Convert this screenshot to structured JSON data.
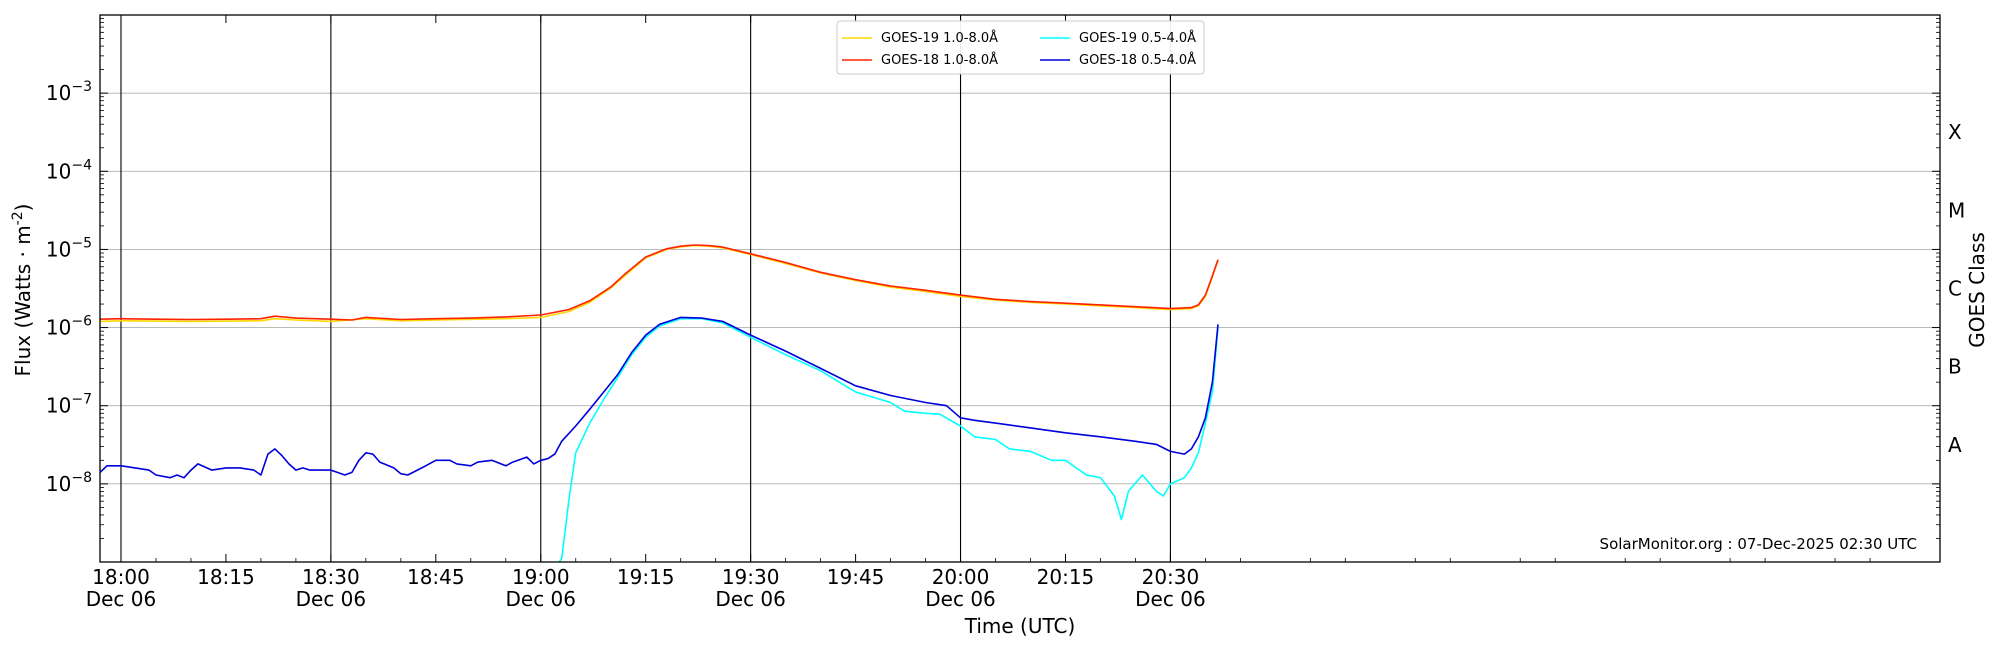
{
  "chart_data": {
    "type": "line",
    "title": "",
    "xlabel": "Time (UTC)",
    "ylabel": "Flux (Watts · m",
    "ylabel_sup": "-2",
    "ylabel_tail": ")",
    "right_label": "GOES Class",
    "y_scale": "log",
    "ylim": [
      1e-09,
      0.01
    ],
    "xlim_minutes": [
      -3,
      260
    ],
    "x_ticks": [
      {
        "minute": 0,
        "time": "18:00",
        "date": "Dec 06"
      },
      {
        "minute": 15,
        "time": "18:15",
        "date": ""
      },
      {
        "minute": 30,
        "time": "18:30",
        "date": "Dec 06"
      },
      {
        "minute": 45,
        "time": "18:45",
        "date": ""
      },
      {
        "minute": 60,
        "time": "19:00",
        "date": "Dec 06"
      },
      {
        "minute": 75,
        "time": "19:15",
        "date": ""
      },
      {
        "minute": 90,
        "time": "19:30",
        "date": "Dec 06"
      },
      {
        "minute": 105,
        "time": "19:45",
        "date": ""
      },
      {
        "minute": 120,
        "time": "20:00",
        "date": "Dec 06"
      },
      {
        "minute": 135,
        "time": "20:15",
        "date": ""
      },
      {
        "minute": 150,
        "time": "20:30",
        "date": "Dec 06"
      }
    ],
    "y_ticks": [
      {
        "exp": -8,
        "label_base": "10",
        "label_exp": "−8"
      },
      {
        "exp": -7,
        "label_base": "10",
        "label_exp": "−7"
      },
      {
        "exp": -6,
        "label_base": "10",
        "label_exp": "−6"
      },
      {
        "exp": -5,
        "label_base": "10",
        "label_exp": "−5"
      },
      {
        "exp": -4,
        "label_base": "10",
        "label_exp": "−4"
      },
      {
        "exp": -3,
        "label_base": "10",
        "label_exp": "−3"
      }
    ],
    "classes": [
      {
        "label": "A",
        "exp": -7.5
      },
      {
        "label": "B",
        "exp": -6.5
      },
      {
        "label": "C",
        "exp": -5.5
      },
      {
        "label": "M",
        "exp": -4.5
      },
      {
        "label": "X",
        "exp": -3.5
      }
    ],
    "grid": true,
    "legend_position": "top-center",
    "series": [
      {
        "name": "GOES-19 1.0-8.0Å",
        "color": "#ffd700",
        "points": [
          [
            -3,
            1.2e-06
          ],
          [
            0,
            1.22e-06
          ],
          [
            10,
            1.2e-06
          ],
          [
            20,
            1.22e-06
          ],
          [
            22,
            1.3e-06
          ],
          [
            25,
            1.25e-06
          ],
          [
            30,
            1.2e-06
          ],
          [
            35,
            1.3e-06
          ],
          [
            40,
            1.22e-06
          ],
          [
            45,
            1.25e-06
          ],
          [
            55,
            1.3e-06
          ],
          [
            60,
            1.35e-06
          ],
          [
            64,
            1.6e-06
          ],
          [
            67,
            2.1e-06
          ],
          [
            70,
            3.2e-06
          ],
          [
            72,
            4.6e-06
          ],
          [
            75,
            7.8e-06
          ],
          [
            78,
            1e-05
          ],
          [
            80,
            1.08e-05
          ],
          [
            82,
            1.12e-05
          ],
          [
            84,
            1.1e-05
          ],
          [
            86,
            1.05e-05
          ],
          [
            90,
            8.6e-06
          ],
          [
            95,
            6.6e-06
          ],
          [
            100,
            5e-06
          ],
          [
            105,
            4e-06
          ],
          [
            110,
            3.3e-06
          ],
          [
            115,
            2.9e-06
          ],
          [
            120,
            2.5e-06
          ],
          [
            125,
            2.25e-06
          ],
          [
            130,
            2.1e-06
          ],
          [
            135,
            2e-06
          ],
          [
            140,
            1.9e-06
          ],
          [
            145,
            1.8e-06
          ],
          [
            150,
            1.7e-06
          ],
          [
            153,
            1.75e-06
          ],
          [
            154,
            1.9e-06
          ],
          [
            155,
            2.5e-06
          ],
          [
            156,
            4.5e-06
          ],
          [
            156.8,
            7.2e-06
          ]
        ]
      },
      {
        "name": "GOES-18 1.0-8.0Å",
        "color": "#ff2200",
        "points": [
          [
            -3,
            1.28e-06
          ],
          [
            0,
            1.3e-06
          ],
          [
            5,
            1.28e-06
          ],
          [
            10,
            1.27e-06
          ],
          [
            15,
            1.28e-06
          ],
          [
            20,
            1.3e-06
          ],
          [
            22,
            1.4e-06
          ],
          [
            25,
            1.32e-06
          ],
          [
            30,
            1.28e-06
          ],
          [
            33,
            1.25e-06
          ],
          [
            35,
            1.35e-06
          ],
          [
            40,
            1.27e-06
          ],
          [
            45,
            1.3e-06
          ],
          [
            50,
            1.32e-06
          ],
          [
            55,
            1.37e-06
          ],
          [
            60,
            1.45e-06
          ],
          [
            64,
            1.7e-06
          ],
          [
            67,
            2.2e-06
          ],
          [
            70,
            3.3e-06
          ],
          [
            72,
            4.8e-06
          ],
          [
            75,
            8e-06
          ],
          [
            78,
            1.02e-05
          ],
          [
            80,
            1.1e-05
          ],
          [
            82,
            1.14e-05
          ],
          [
            84,
            1.12e-05
          ],
          [
            86,
            1.07e-05
          ],
          [
            90,
            8.8e-06
          ],
          [
            95,
            6.8e-06
          ],
          [
            100,
            5.1e-06
          ],
          [
            105,
            4.1e-06
          ],
          [
            110,
            3.4e-06
          ],
          [
            115,
            3e-06
          ],
          [
            120,
            2.6e-06
          ],
          [
            125,
            2.3e-06
          ],
          [
            130,
            2.15e-06
          ],
          [
            135,
            2.05e-06
          ],
          [
            140,
            1.95e-06
          ],
          [
            145,
            1.85e-06
          ],
          [
            150,
            1.75e-06
          ],
          [
            153,
            1.8e-06
          ],
          [
            154,
            1.95e-06
          ],
          [
            155,
            2.6e-06
          ],
          [
            156,
            4.6e-06
          ],
          [
            156.8,
            7.4e-06
          ]
        ]
      },
      {
        "name": "GOES-19 0.5-4.0Å",
        "color": "#00ffff",
        "points": [
          [
            60,
            5e-10
          ],
          [
            63,
            1.1e-09
          ],
          [
            64,
            6e-09
          ],
          [
            65,
            2.5e-08
          ],
          [
            67,
            6e-08
          ],
          [
            69,
            1.2e-07
          ],
          [
            71,
            2.3e-07
          ],
          [
            73,
            4.5e-07
          ],
          [
            75,
            7.5e-07
          ],
          [
            77,
            1.05e-06
          ],
          [
            80,
            1.3e-06
          ],
          [
            83,
            1.3e-06
          ],
          [
            86,
            1.15e-06
          ],
          [
            90,
            7.5e-07
          ],
          [
            95,
            4.5e-07
          ],
          [
            100,
            2.8e-07
          ],
          [
            105,
            1.5e-07
          ],
          [
            110,
            1.1e-07
          ],
          [
            112,
            8.5e-08
          ],
          [
            115,
            8e-08
          ],
          [
            117,
            7.8e-08
          ],
          [
            120,
            5.5e-08
          ],
          [
            122,
            4e-08
          ],
          [
            125,
            3.7e-08
          ],
          [
            127,
            2.8e-08
          ],
          [
            130,
            2.6e-08
          ],
          [
            133,
            2e-08
          ],
          [
            135,
            2e-08
          ],
          [
            138,
            1.3e-08
          ],
          [
            140,
            1.2e-08
          ],
          [
            142,
            7e-09
          ],
          [
            143,
            3.5e-09
          ],
          [
            144,
            8e-09
          ],
          [
            146,
            1.3e-08
          ],
          [
            148,
            8e-09
          ],
          [
            149,
            7e-09
          ],
          [
            150,
            1e-08
          ],
          [
            152,
            1.2e-08
          ],
          [
            153,
            1.6e-08
          ],
          [
            154,
            2.5e-08
          ],
          [
            155,
            6e-08
          ],
          [
            156,
            1.5e-07
          ],
          [
            156.8,
            1e-06
          ]
        ]
      },
      {
        "name": "GOES-18 0.5-4.0Å",
        "color": "#0000dd",
        "points": [
          [
            -3,
            1.4e-08
          ],
          [
            -2,
            1.7e-08
          ],
          [
            0,
            1.7e-08
          ],
          [
            2,
            1.6e-08
          ],
          [
            4,
            1.5e-08
          ],
          [
            5,
            1.3e-08
          ],
          [
            7,
            1.2e-08
          ],
          [
            8,
            1.3e-08
          ],
          [
            9,
            1.2e-08
          ],
          [
            10,
            1.5e-08
          ],
          [
            11,
            1.8e-08
          ],
          [
            13,
            1.5e-08
          ],
          [
            15,
            1.6e-08
          ],
          [
            17,
            1.6e-08
          ],
          [
            19,
            1.5e-08
          ],
          [
            20,
            1.3e-08
          ],
          [
            21,
            2.4e-08
          ],
          [
            22,
            2.8e-08
          ],
          [
            23,
            2.3e-08
          ],
          [
            24,
            1.8e-08
          ],
          [
            25,
            1.5e-08
          ],
          [
            26,
            1.6e-08
          ],
          [
            27,
            1.5e-08
          ],
          [
            30,
            1.5e-08
          ],
          [
            32,
            1.3e-08
          ],
          [
            33,
            1.4e-08
          ],
          [
            34,
            2e-08
          ],
          [
            35,
            2.5e-08
          ],
          [
            36,
            2.4e-08
          ],
          [
            37,
            1.9e-08
          ],
          [
            39,
            1.6e-08
          ],
          [
            40,
            1.35e-08
          ],
          [
            41,
            1.3e-08
          ],
          [
            43,
            1.6e-08
          ],
          [
            45,
            2e-08
          ],
          [
            47,
            2e-08
          ],
          [
            48,
            1.8e-08
          ],
          [
            50,
            1.7e-08
          ],
          [
            51,
            1.9e-08
          ],
          [
            53,
            2e-08
          ],
          [
            55,
            1.7e-08
          ],
          [
            56,
            1.9e-08
          ],
          [
            58,
            2.2e-08
          ],
          [
            59,
            1.8e-08
          ],
          [
            60,
            2e-08
          ],
          [
            61,
            2.1e-08
          ],
          [
            62,
            2.4e-08
          ],
          [
            63,
            3.5e-08
          ],
          [
            65,
            5.5e-08
          ],
          [
            67,
            9e-08
          ],
          [
            69,
            1.5e-07
          ],
          [
            71,
            2.5e-07
          ],
          [
            73,
            4.8e-07
          ],
          [
            75,
            8e-07
          ],
          [
            77,
            1.1e-06
          ],
          [
            80,
            1.35e-06
          ],
          [
            83,
            1.32e-06
          ],
          [
            86,
            1.2e-06
          ],
          [
            90,
            8e-07
          ],
          [
            95,
            5e-07
          ],
          [
            100,
            3e-07
          ],
          [
            105,
            1.8e-07
          ],
          [
            110,
            1.35e-07
          ],
          [
            115,
            1.1e-07
          ],
          [
            118,
            1e-07
          ],
          [
            120,
            7e-08
          ],
          [
            122,
            6.5e-08
          ],
          [
            125,
            6e-08
          ],
          [
            130,
            5.2e-08
          ],
          [
            135,
            4.5e-08
          ],
          [
            140,
            4e-08
          ],
          [
            145,
            3.5e-08
          ],
          [
            148,
            3.2e-08
          ],
          [
            150,
            2.6e-08
          ],
          [
            152,
            2.4e-08
          ],
          [
            153,
            2.8e-08
          ],
          [
            154,
            4e-08
          ],
          [
            155,
            7e-08
          ],
          [
            156,
            2e-07
          ],
          [
            156.8,
            1.1e-06
          ]
        ]
      }
    ]
  },
  "credit": "SolarMonitor.org : 07-Dec-2025 02:30 UTC"
}
